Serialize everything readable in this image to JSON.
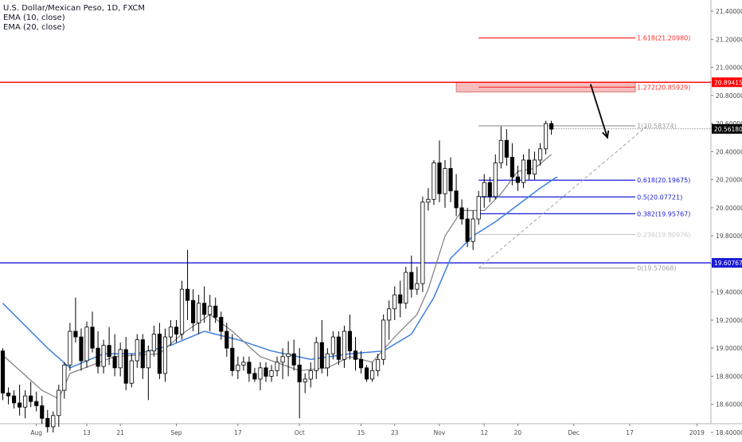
{
  "legend": {
    "symbol": "U.S. Dollar/Mexican Peso, 1D, FXCM",
    "ema10": "EMA (10, close)",
    "ema20": "EMA (20, close)"
  },
  "colors": {
    "up_candle": "#ffffff",
    "down_candle": "#000000",
    "ema10": "#7f7f7f",
    "ema20": "#3d7ee0",
    "resistance": "#ff0000",
    "support": "#1a1ad6",
    "fib_blue": "#1a1ad6",
    "fib_red": "#ff2b2b",
    "fib_gray": "#9e9e9e"
  },
  "chart_data": {
    "type": "candlestick",
    "symbol": "USDMXN",
    "timeframe": "1D",
    "ylim": [
      18.36,
      21.48
    ],
    "y_ticks": [
      "21.40000",
      "21.20000",
      "21.00000",
      "20.80000",
      "20.60000",
      "20.40000",
      "20.20000",
      "20.00000",
      "19.80000",
      "19.60000",
      "19.40000",
      "19.20000",
      "19.00000",
      "18.80000",
      "18.60000",
      "18.40000"
    ],
    "x_ticks": [
      "Aug",
      "13",
      "21",
      "Sep",
      "17",
      "Oct",
      "15",
      "23",
      "Nov",
      "12",
      "20",
      "Dec",
      "17",
      "2019"
    ],
    "x_tick_bars": [
      6,
      15,
      21,
      31,
      42,
      53,
      64,
      70,
      78,
      86,
      92,
      102,
      112,
      124
    ],
    "bars_total": 127,
    "candles": [
      {
        "o": 18.98,
        "h": 19.0,
        "l": 18.63,
        "c": 18.68
      },
      {
        "o": 18.68,
        "h": 18.72,
        "l": 18.6,
        "c": 18.66
      },
      {
        "o": 18.66,
        "h": 18.7,
        "l": 18.57,
        "c": 18.61
      },
      {
        "o": 18.61,
        "h": 18.74,
        "l": 18.52,
        "c": 18.58
      },
      {
        "o": 18.58,
        "h": 18.7,
        "l": 18.5,
        "c": 18.66
      },
      {
        "o": 18.66,
        "h": 18.76,
        "l": 18.58,
        "c": 18.62
      },
      {
        "o": 18.62,
        "h": 18.69,
        "l": 18.55,
        "c": 18.59
      },
      {
        "o": 18.59,
        "h": 18.66,
        "l": 18.46,
        "c": 18.5
      },
      {
        "o": 18.5,
        "h": 18.56,
        "l": 18.4,
        "c": 18.44
      },
      {
        "o": 18.44,
        "h": 18.55,
        "l": 18.4,
        "c": 18.52
      },
      {
        "o": 18.52,
        "h": 18.74,
        "l": 18.44,
        "c": 18.7
      },
      {
        "o": 18.7,
        "h": 18.9,
        "l": 18.64,
        "c": 18.88
      },
      {
        "o": 18.88,
        "h": 19.18,
        "l": 18.84,
        "c": 19.12
      },
      {
        "o": 19.12,
        "h": 19.36,
        "l": 19.04,
        "c": 19.08
      },
      {
        "o": 19.08,
        "h": 19.14,
        "l": 18.84,
        "c": 18.91
      },
      {
        "o": 18.91,
        "h": 19.19,
        "l": 18.86,
        "c": 19.15
      },
      {
        "o": 19.15,
        "h": 19.26,
        "l": 18.97,
        "c": 19.0
      },
      {
        "o": 19.0,
        "h": 19.12,
        "l": 18.82,
        "c": 18.87
      },
      {
        "o": 18.87,
        "h": 19.06,
        "l": 18.82,
        "c": 19.02
      },
      {
        "o": 19.02,
        "h": 19.15,
        "l": 18.88,
        "c": 18.94
      },
      {
        "o": 18.94,
        "h": 19.1,
        "l": 18.8,
        "c": 18.86
      },
      {
        "o": 18.86,
        "h": 19.04,
        "l": 18.8,
        "c": 18.99
      },
      {
        "o": 18.99,
        "h": 19.08,
        "l": 18.7,
        "c": 18.75
      },
      {
        "o": 18.75,
        "h": 18.96,
        "l": 18.72,
        "c": 18.91
      },
      {
        "o": 18.91,
        "h": 19.1,
        "l": 18.86,
        "c": 19.06
      },
      {
        "o": 19.06,
        "h": 19.1,
        "l": 18.78,
        "c": 18.86
      },
      {
        "o": 18.86,
        "h": 19.02,
        "l": 18.63,
        "c": 18.98
      },
      {
        "o": 18.98,
        "h": 19.16,
        "l": 18.94,
        "c": 19.1
      },
      {
        "o": 19.1,
        "h": 19.18,
        "l": 18.78,
        "c": 18.82
      },
      {
        "o": 18.82,
        "h": 19.14,
        "l": 18.76,
        "c": 19.08
      },
      {
        "o": 19.08,
        "h": 19.2,
        "l": 19.02,
        "c": 19.15
      },
      {
        "o": 19.15,
        "h": 19.2,
        "l": 19.04,
        "c": 19.1
      },
      {
        "o": 19.1,
        "h": 19.48,
        "l": 19.06,
        "c": 19.42
      },
      {
        "o": 19.42,
        "h": 19.7,
        "l": 19.2,
        "c": 19.34
      },
      {
        "o": 19.34,
        "h": 19.42,
        "l": 19.12,
        "c": 19.18
      },
      {
        "o": 19.18,
        "h": 19.38,
        "l": 19.1,
        "c": 19.32
      },
      {
        "o": 19.32,
        "h": 19.44,
        "l": 19.18,
        "c": 19.24
      },
      {
        "o": 19.24,
        "h": 19.38,
        "l": 19.12,
        "c": 19.3
      },
      {
        "o": 19.3,
        "h": 19.36,
        "l": 19.18,
        "c": 19.22
      },
      {
        "o": 19.22,
        "h": 19.26,
        "l": 19.06,
        "c": 19.12
      },
      {
        "o": 19.12,
        "h": 19.18,
        "l": 18.94,
        "c": 19.0
      },
      {
        "o": 19.0,
        "h": 19.1,
        "l": 18.8,
        "c": 18.84
      },
      {
        "o": 18.84,
        "h": 18.94,
        "l": 18.78,
        "c": 18.88
      },
      {
        "o": 18.88,
        "h": 18.94,
        "l": 18.84,
        "c": 18.9
      },
      {
        "o": 18.9,
        "h": 18.94,
        "l": 18.76,
        "c": 18.82
      },
      {
        "o": 18.82,
        "h": 18.86,
        "l": 18.76,
        "c": 18.78
      },
      {
        "o": 18.78,
        "h": 18.9,
        "l": 18.7,
        "c": 18.86
      },
      {
        "o": 18.86,
        "h": 18.9,
        "l": 18.76,
        "c": 18.8
      },
      {
        "o": 18.8,
        "h": 18.88,
        "l": 18.76,
        "c": 18.84
      },
      {
        "o": 18.84,
        "h": 18.94,
        "l": 18.8,
        "c": 18.9
      },
      {
        "o": 18.9,
        "h": 19.0,
        "l": 18.78,
        "c": 18.94
      },
      {
        "o": 18.94,
        "h": 19.05,
        "l": 18.8,
        "c": 18.96
      },
      {
        "o": 18.96,
        "h": 19.06,
        "l": 18.84,
        "c": 18.88
      },
      {
        "o": 18.88,
        "h": 19.0,
        "l": 18.5,
        "c": 18.76
      },
      {
        "o": 18.76,
        "h": 18.82,
        "l": 18.68,
        "c": 18.78
      },
      {
        "o": 18.78,
        "h": 18.9,
        "l": 18.72,
        "c": 18.84
      },
      {
        "o": 18.84,
        "h": 19.08,
        "l": 18.78,
        "c": 19.04
      },
      {
        "o": 19.04,
        "h": 19.2,
        "l": 18.82,
        "c": 18.86
      },
      {
        "o": 18.86,
        "h": 19.0,
        "l": 18.8,
        "c": 18.96
      },
      {
        "o": 18.96,
        "h": 19.12,
        "l": 18.92,
        "c": 19.08
      },
      {
        "o": 19.08,
        "h": 19.12,
        "l": 18.88,
        "c": 18.92
      },
      {
        "o": 18.92,
        "h": 19.16,
        "l": 18.86,
        "c": 19.12
      },
      {
        "o": 19.12,
        "h": 19.24,
        "l": 18.92,
        "c": 18.98
      },
      {
        "o": 18.98,
        "h": 19.08,
        "l": 18.84,
        "c": 18.92
      },
      {
        "o": 18.92,
        "h": 18.98,
        "l": 18.82,
        "c": 18.86
      },
      {
        "o": 18.86,
        "h": 18.88,
        "l": 18.76,
        "c": 18.78
      },
      {
        "o": 18.78,
        "h": 18.9,
        "l": 18.76,
        "c": 18.84
      },
      {
        "o": 18.84,
        "h": 18.96,
        "l": 18.8,
        "c": 18.92
      },
      {
        "o": 18.92,
        "h": 19.24,
        "l": 18.88,
        "c": 19.2
      },
      {
        "o": 19.2,
        "h": 19.34,
        "l": 19.06,
        "c": 19.28
      },
      {
        "o": 19.28,
        "h": 19.44,
        "l": 19.2,
        "c": 19.38
      },
      {
        "o": 19.38,
        "h": 19.48,
        "l": 19.22,
        "c": 19.32
      },
      {
        "o": 19.32,
        "h": 19.58,
        "l": 19.28,
        "c": 19.54
      },
      {
        "o": 19.54,
        "h": 19.66,
        "l": 19.36,
        "c": 19.42
      },
      {
        "o": 19.42,
        "h": 19.58,
        "l": 19.38,
        "c": 19.46
      },
      {
        "o": 19.46,
        "h": 20.08,
        "l": 19.4,
        "c": 20.04
      },
      {
        "o": 20.04,
        "h": 20.14,
        "l": 19.98,
        "c": 20.06
      },
      {
        "o": 20.06,
        "h": 20.34,
        "l": 20.02,
        "c": 20.32
      },
      {
        "o": 20.32,
        "h": 20.48,
        "l": 20.04,
        "c": 20.1
      },
      {
        "o": 20.1,
        "h": 20.34,
        "l": 20.0,
        "c": 20.28
      },
      {
        "o": 20.28,
        "h": 20.36,
        "l": 20.04,
        "c": 20.12
      },
      {
        "o": 20.12,
        "h": 20.24,
        "l": 19.94,
        "c": 20.0
      },
      {
        "o": 20.0,
        "h": 20.06,
        "l": 19.88,
        "c": 19.92
      },
      {
        "o": 19.92,
        "h": 20.0,
        "l": 19.72,
        "c": 19.76
      },
      {
        "o": 19.76,
        "h": 19.98,
        "l": 19.7,
        "c": 19.92
      },
      {
        "o": 19.92,
        "h": 20.12,
        "l": 19.88,
        "c": 20.08
      },
      {
        "o": 20.08,
        "h": 20.24,
        "l": 20.0,
        "c": 20.18
      },
      {
        "o": 20.18,
        "h": 20.22,
        "l": 20.04,
        "c": 20.08
      },
      {
        "o": 20.08,
        "h": 20.38,
        "l": 20.06,
        "c": 20.32
      },
      {
        "o": 20.32,
        "h": 20.58,
        "l": 20.28,
        "c": 20.48
      },
      {
        "o": 20.48,
        "h": 20.56,
        "l": 20.3,
        "c": 20.36
      },
      {
        "o": 20.36,
        "h": 20.46,
        "l": 20.16,
        "c": 20.22
      },
      {
        "o": 20.22,
        "h": 20.3,
        "l": 20.12,
        "c": 20.18
      },
      {
        "o": 20.18,
        "h": 20.38,
        "l": 20.14,
        "c": 20.34
      },
      {
        "o": 20.34,
        "h": 20.42,
        "l": 20.2,
        "c": 20.24
      },
      {
        "o": 20.24,
        "h": 20.4,
        "l": 20.2,
        "c": 20.34
      },
      {
        "o": 20.34,
        "h": 20.46,
        "l": 20.3,
        "c": 20.42
      },
      {
        "o": 20.42,
        "h": 20.62,
        "l": 20.38,
        "c": 20.6
      },
      {
        "o": 20.6,
        "h": 20.62,
        "l": 20.52,
        "c": 20.56
      }
    ],
    "ema10_anchor": [
      [
        0,
        18.95
      ],
      [
        7,
        18.7
      ],
      [
        10,
        18.64
      ],
      [
        12,
        18.82
      ],
      [
        20,
        18.94
      ],
      [
        28,
        18.96
      ],
      [
        32,
        19.1
      ],
      [
        37,
        19.24
      ],
      [
        41,
        19.12
      ],
      [
        46,
        18.94
      ],
      [
        53,
        18.84
      ],
      [
        58,
        18.86
      ],
      [
        62,
        18.94
      ],
      [
        66,
        18.9
      ],
      [
        70,
        19.08
      ],
      [
        74,
        19.24
      ],
      [
        76,
        19.42
      ],
      [
        79,
        19.8
      ],
      [
        82,
        19.98
      ],
      [
        86,
        19.98
      ],
      [
        89,
        20.1
      ],
      [
        92,
        20.26
      ],
      [
        95,
        20.28
      ],
      [
        98,
        20.38
      ]
    ],
    "ema20_anchor": [
      [
        0,
        19.32
      ],
      [
        8,
        19.0
      ],
      [
        12,
        18.86
      ],
      [
        18,
        18.96
      ],
      [
        24,
        18.96
      ],
      [
        30,
        19.02
      ],
      [
        36,
        19.12
      ],
      [
        42,
        19.06
      ],
      [
        48,
        18.98
      ],
      [
        55,
        18.92
      ],
      [
        62,
        18.96
      ],
      [
        68,
        18.98
      ],
      [
        73,
        19.1
      ],
      [
        77,
        19.36
      ],
      [
        80,
        19.64
      ],
      [
        84,
        19.8
      ],
      [
        88,
        19.9
      ],
      [
        92,
        20.02
      ],
      [
        96,
        20.14
      ],
      [
        99,
        20.22
      ]
    ],
    "levels": [
      {
        "price": 20.89415,
        "label": "20.89415",
        "color": "#ff0000"
      },
      {
        "price": 19.60767,
        "label": "19.60767",
        "color": "#1a1ad6"
      }
    ],
    "last_price": {
      "price": 20.5618,
      "label": "20.56180"
    },
    "fibonacci": {
      "start_bar": 85,
      "end_bar": 113,
      "lines": [
        {
          "price": 21.2098,
          "label": "1.618(21.20980)",
          "color": "#ff2b2b"
        },
        {
          "price": 20.85929,
          "label": "1.272(20.85929)",
          "color": "#ff2b2b"
        },
        {
          "price": 20.58374,
          "label": "1(20.58374)",
          "color": "#9e9e9e"
        },
        {
          "price": 20.19675,
          "label": "0.618(20.19675)",
          "color": "#1a1ad6"
        },
        {
          "price": 20.07721,
          "label": "0.5(20.07721)",
          "color": "#1a1ad6"
        },
        {
          "price": 19.95767,
          "label": "0.382(19.95767)",
          "color": "#1a1ad6"
        },
        {
          "price": 19.80976,
          "label": "0.236(19.80976)",
          "color": "#c8c8c8"
        },
        {
          "price": 19.57068,
          "label": "0(19.57068)",
          "color": "#9e9e9e"
        }
      ],
      "zone": {
        "from": 20.85929,
        "to": 20.89415,
        "start_bar": 81,
        "end_bar": 113
      }
    },
    "trendline": {
      "from": [
        85,
        19.57
      ],
      "to": [
        115,
        20.58
      ]
    },
    "arrow": {
      "from": [
        105,
        20.88
      ],
      "to": [
        108,
        20.5
      ]
    }
  }
}
